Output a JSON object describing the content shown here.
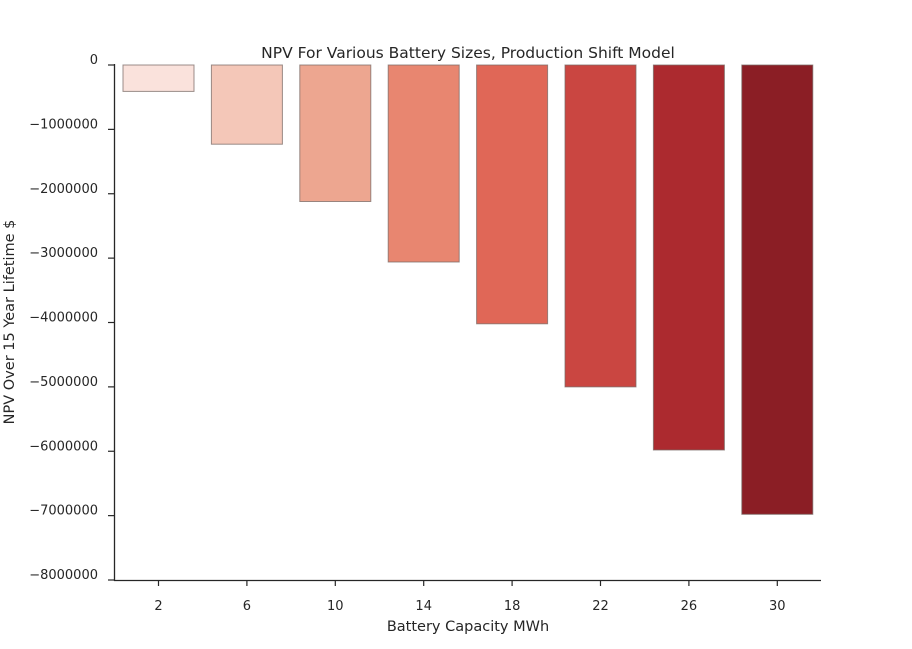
{
  "chart_data": {
    "type": "bar",
    "title": "NPV For Various Battery Sizes, Production Shift Model",
    "xlabel": "Battery Capacity MWh",
    "ylabel": "NPV Over 15 Year Lifetime $",
    "categories": [
      "2",
      "6",
      "10",
      "14",
      "18",
      "22",
      "26",
      "30"
    ],
    "values": [
      -410000,
      -1230000,
      -2120000,
      -3060000,
      -4020000,
      -5000000,
      -5980000,
      -6980000
    ],
    "ylim": [
      -8000000,
      0
    ],
    "yticks": [
      0,
      -1000000,
      -2000000,
      -3000000,
      -4000000,
      -5000000,
      -6000000,
      -7000000,
      -8000000
    ],
    "ytick_labels": [
      "0",
      "−1000000",
      "−2000000",
      "−3000000",
      "−4000000",
      "−5000000",
      "−6000000",
      "−7000000",
      "−8000000"
    ],
    "grid": false,
    "bar_colors": [
      "#fae2dc",
      "#f4c7b8",
      "#eda690",
      "#e88670",
      "#e06757",
      "#ca4641",
      "#ac2a2f",
      "#8b1e25"
    ]
  }
}
